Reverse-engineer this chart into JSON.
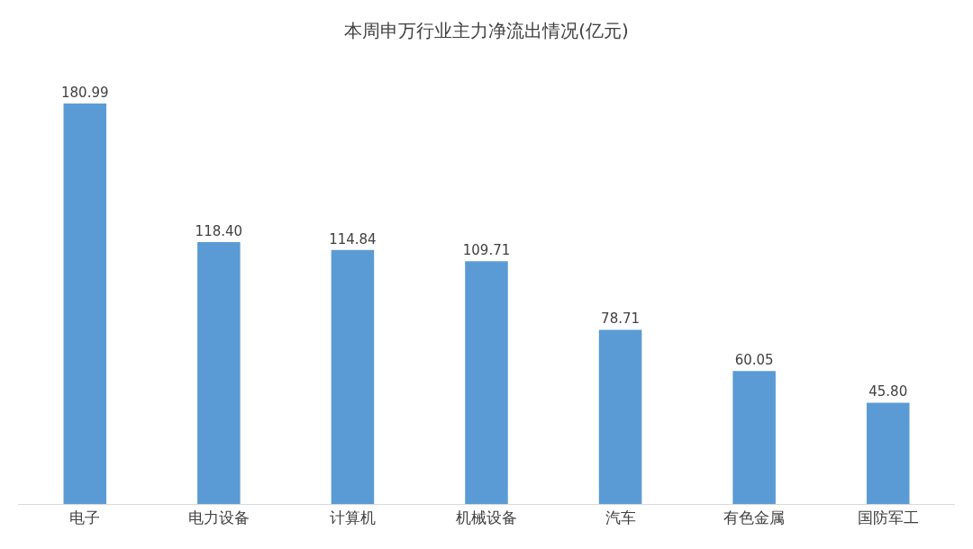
{
  "chart_data": {
    "type": "bar",
    "title": "本周申万行业主力净流出情况(亿元)",
    "categories": [
      "电子",
      "电力设备",
      "计算机",
      "机械设备",
      "汽车",
      "有色金属",
      "国防军工"
    ],
    "values": [
      180.99,
      118.4,
      114.84,
      109.71,
      78.71,
      60.05,
      45.8
    ],
    "value_labels": [
      "180.99",
      "118.40",
      "114.84",
      "109.71",
      "78.71",
      "60.05",
      "45.80"
    ],
    "color": "#5b9bd5",
    "legend": false,
    "tick_labels": "x"
  }
}
